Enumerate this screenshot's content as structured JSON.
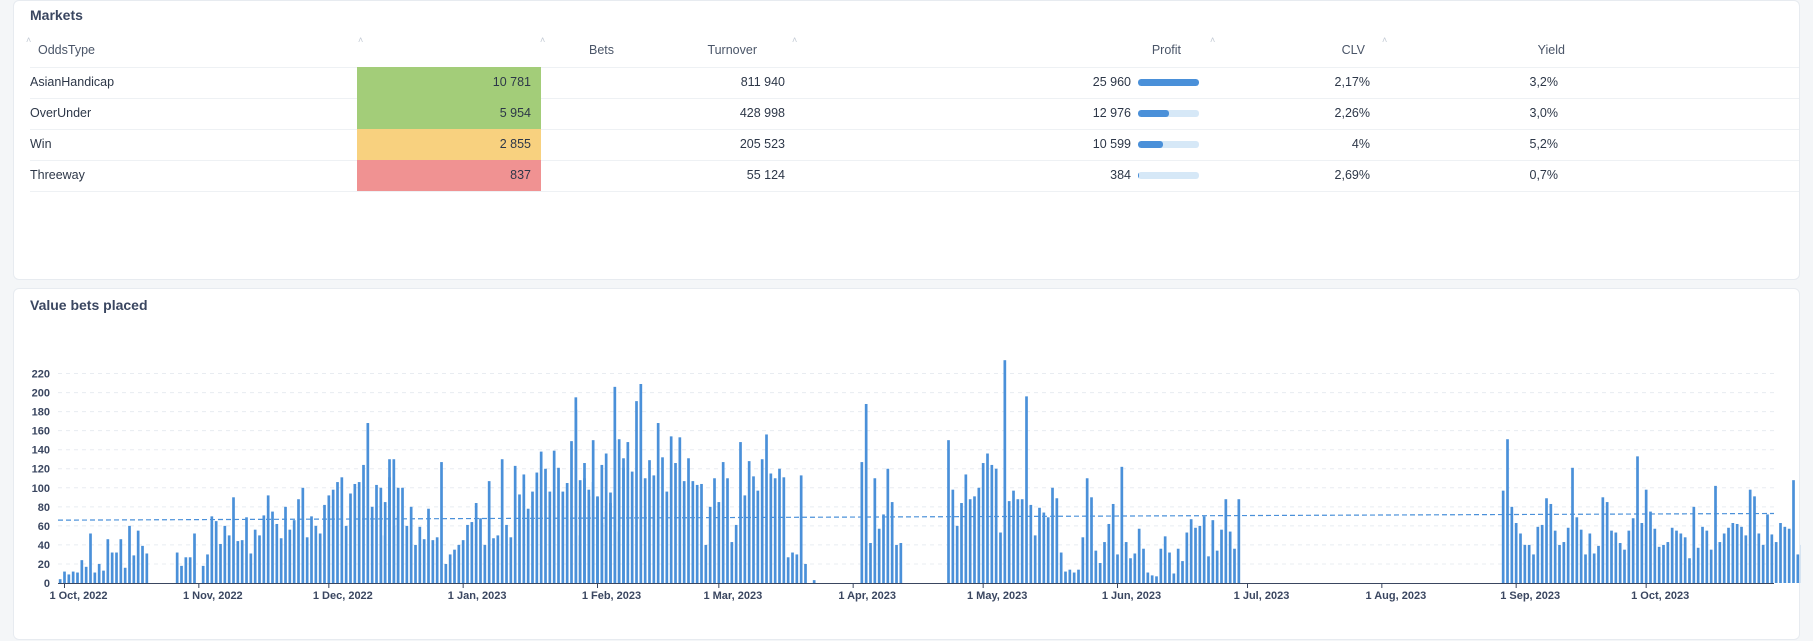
{
  "markets": {
    "title": "Markets",
    "columns": [
      "OddsType",
      "Bets",
      "Turnover",
      "Profit",
      "CLV",
      "Yield"
    ],
    "rows": [
      {
        "name": "AsianHandicap",
        "bets": "10 781",
        "bets_level": "high",
        "turnover": "811 940",
        "profit": "25 960",
        "profit_fraction": 1.0,
        "clv": "2,17%",
        "yield": "3,2%"
      },
      {
        "name": "OverUnder",
        "bets": "5 954",
        "bets_level": "high",
        "turnover": "428 998",
        "profit": "12 976",
        "profit_fraction": 0.5,
        "clv": "2,26%",
        "yield": "3,0%"
      },
      {
        "name": "Win",
        "bets": "2 855",
        "bets_level": "mid",
        "turnover": "205 523",
        "profit": "10 599",
        "profit_fraction": 0.408,
        "clv": "4%",
        "yield": "5,2%"
      },
      {
        "name": "Threeway",
        "bets": "837",
        "bets_level": "low",
        "turnover": "55 124",
        "profit": "384",
        "profit_fraction": 0.015,
        "clv": "2,69%",
        "yield": "0,7%"
      }
    ],
    "colors": {
      "high": "#a3cd79",
      "mid": "#f8d17f",
      "low": "#f09292",
      "bar_fill": "#4a90d9",
      "bar_track": "#d6e8f7"
    }
  },
  "chart_data": {
    "type": "bar",
    "title": "Value bets placed",
    "x_range": [
      "2022-09-30",
      "2023-10-31"
    ],
    "ylim": [
      0,
      230
    ],
    "yticks": [
      0,
      20,
      40,
      60,
      80,
      100,
      120,
      140,
      160,
      180,
      200,
      220
    ],
    "xticks": [
      "1 Oct, 2022",
      "1 Nov, 2022",
      "1 Dec, 2022",
      "1 Jan, 2023",
      "1 Feb, 2023",
      "1 Mar, 2023",
      "1 Apr, 2023",
      "1 May, 2023",
      "1 Jun, 2023",
      "1 Jul, 2023",
      "1 Aug, 2023",
      "1 Sep, 2023",
      "1 Oct, 2023"
    ],
    "grid": true,
    "bar_color": "#4a90d9",
    "trend_line": {
      "style": "dashed",
      "color": "#4a90d9",
      "start": 66,
      "end": 73
    },
    "segments": [
      {
        "start": "2022-09-30",
        "values": [
          4,
          12,
          9,
          12,
          11,
          24,
          17,
          52,
          11,
          20,
          13,
          46,
          32,
          32,
          46,
          16,
          60,
          29,
          55,
          39,
          31
        ]
      },
      {
        "start": "2022-10-27",
        "values": [
          32,
          18,
          27,
          27,
          52,
          0,
          18,
          30,
          70,
          65,
          41,
          60,
          50,
          90,
          44,
          45,
          69,
          31,
          56,
          50,
          71,
          92,
          75,
          62,
          47,
          80,
          56,
          66,
          88,
          100,
          48,
          70,
          60,
          52,
          82,
          92,
          98,
          106,
          111,
          60,
          94,
          104,
          106,
          124,
          168,
          80,
          103,
          100,
          50,
          130,
          60,
          100
        ]
      },
      {
        "start": "2022-12-13",
        "values": [
          50,
          85,
          111,
          130,
          70,
          100,
          60,
          80,
          40,
          59,
          46,
          78,
          45,
          48,
          127,
          20,
          30,
          35,
          40,
          45,
          61,
          64,
          84,
          68,
          40,
          107,
          47,
          50,
          130,
          61,
          48,
          123,
          93,
          114,
          78,
          96,
          116,
          138,
          120,
          96,
          139,
          121,
          96,
          105,
          149,
          182,
          108,
          126,
          98,
          106,
          90,
          63,
          136,
          84,
          150,
          54,
          121
        ]
      },
      {
        "start": "2023-01-27",
        "values": [
          195,
          50,
          110,
          91,
          150,
          91,
          124,
          75,
          95,
          206,
          151,
          131,
          148,
          117,
          191,
          209,
          110,
          129,
          113,
          168,
          132,
          96,
          154,
          126,
          153,
          107,
          131,
          107,
          103,
          104,
          40,
          80,
          110,
          85,
          127,
          110,
          43,
          61,
          148,
          92,
          128,
          112,
          97,
          130,
          156,
          115,
          110,
          120,
          111,
          27,
          32,
          30,
          113,
          20
        ]
      },
      {
        "start": "2023-03-23",
        "values": [
          3,
          0,
          0,
          0,
          0,
          0,
          0,
          0,
          0,
          0,
          0,
          127,
          188,
          42,
          110,
          57,
          72,
          120,
          85,
          40,
          42,
          0,
          0,
          0,
          0,
          0,
          0,
          0,
          0,
          0,
          0,
          150,
          98,
          60,
          84,
          114,
          88,
          91,
          100,
          126,
          136,
          124,
          120,
          53
        ]
      },
      {
        "start": "2023-05-06",
        "values": [
          234,
          86,
          97,
          88,
          88,
          196,
          82,
          50,
          79,
          74,
          69,
          100,
          89,
          32,
          12,
          14,
          11,
          14,
          48,
          110,
          90,
          34,
          21,
          43,
          62,
          83,
          30,
          122,
          43,
          26,
          31,
          57,
          36,
          11,
          8,
          7,
          36,
          49,
          32,
          10,
          36,
          23,
          53,
          67,
          58,
          60,
          70,
          28,
          66,
          34,
          56,
          88,
          54,
          36,
          88
        ]
      },
      {
        "start": "2023-08-29",
        "values": [
          97,
          151,
          80,
          63,
          52,
          40,
          40,
          30,
          59,
          61,
          89,
          83,
          55,
          40,
          43,
          58,
          121,
          69,
          56,
          30,
          52,
          31,
          39,
          90,
          85,
          55,
          53,
          42,
          35,
          55,
          68,
          133,
          63,
          98,
          75,
          57,
          38,
          40,
          43,
          58,
          55,
          52,
          48,
          26,
          80,
          37,
          59,
          55,
          35,
          102,
          43,
          52,
          58,
          63,
          62,
          59,
          50,
          98,
          91,
          52,
          40,
          72,
          51,
          43,
          63,
          59,
          57,
          108,
          30,
          40,
          66,
          79,
          63,
          111,
          117,
          49,
          99,
          105,
          48,
          42,
          51,
          110,
          60,
          45,
          102,
          97,
          38,
          52,
          90,
          77,
          120,
          97,
          101,
          60,
          120,
          42,
          48,
          9,
          40
        ]
      }
    ]
  }
}
